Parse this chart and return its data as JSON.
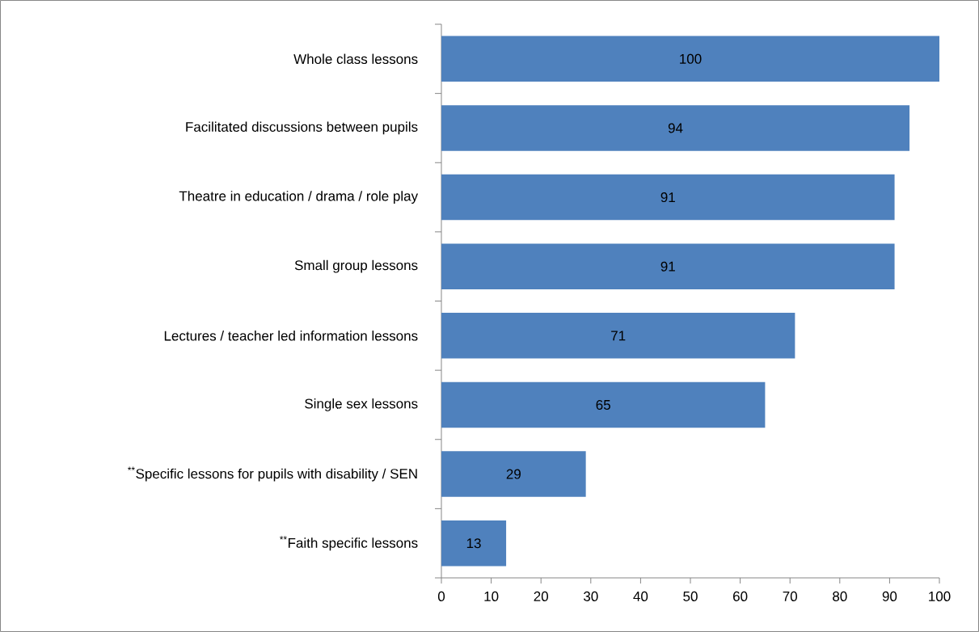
{
  "chart_data": {
    "type": "bar",
    "orientation": "horizontal",
    "categories": [
      "Whole class lessons",
      "Facilitated discussions between pupils",
      "Theatre in education / drama / role play",
      "Small group lessons",
      "Lectures / teacher led information lessons",
      "Single sex lessons",
      "$^{**}$Specific lessons for pupils with disability / SEN",
      "$^{**}$Faith specific lessons"
    ],
    "values": [
      100,
      94,
      91,
      91,
      71,
      65,
      29,
      13
    ],
    "color": "#4f81bd",
    "xlim": [
      0,
      100
    ],
    "xticks": [
      0,
      10,
      20,
      30,
      40,
      50,
      60,
      70,
      80,
      90,
      100
    ],
    "data_labels": true
  }
}
